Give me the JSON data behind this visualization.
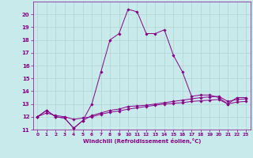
{
  "xlabel": "Windchill (Refroidissement éolien,°C)",
  "background_color": "#c8eaea",
  "grid_color": "#b0d4d4",
  "line_color": "#880088",
  "hours": [
    0,
    1,
    2,
    3,
    4,
    5,
    6,
    7,
    8,
    9,
    10,
    11,
    12,
    13,
    14,
    15,
    16,
    17,
    18,
    19,
    20,
    21,
    22,
    23
  ],
  "temp": [
    12.0,
    12.5,
    12.0,
    11.9,
    11.1,
    11.7,
    13.0,
    15.5,
    18.0,
    18.5,
    20.4,
    20.2,
    18.5,
    18.5,
    18.8,
    16.8,
    15.5,
    13.6,
    13.7,
    13.7,
    13.5,
    13.0,
    13.5,
    13.5
  ],
  "windchill": [
    12.0,
    12.5,
    12.0,
    11.9,
    11.1,
    11.7,
    12.1,
    12.3,
    12.5,
    12.6,
    12.8,
    12.85,
    12.9,
    13.0,
    13.1,
    13.2,
    13.3,
    13.4,
    13.5,
    13.55,
    13.6,
    13.2,
    13.35,
    13.4
  ],
  "windchill2": [
    12.0,
    12.3,
    12.1,
    12.0,
    11.8,
    11.9,
    12.0,
    12.2,
    12.35,
    12.45,
    12.6,
    12.7,
    12.8,
    12.9,
    13.0,
    13.05,
    13.1,
    13.2,
    13.25,
    13.3,
    13.35,
    13.0,
    13.15,
    13.2
  ],
  "ylim": [
    11,
    21
  ],
  "xlim": [
    -0.5,
    23.5
  ],
  "yticks": [
    11,
    12,
    13,
    14,
    15,
    16,
    17,
    18,
    19,
    20
  ],
  "xticks": [
    0,
    1,
    2,
    3,
    4,
    5,
    6,
    7,
    8,
    9,
    10,
    11,
    12,
    13,
    14,
    15,
    16,
    17,
    18,
    19,
    20,
    21,
    22,
    23
  ]
}
